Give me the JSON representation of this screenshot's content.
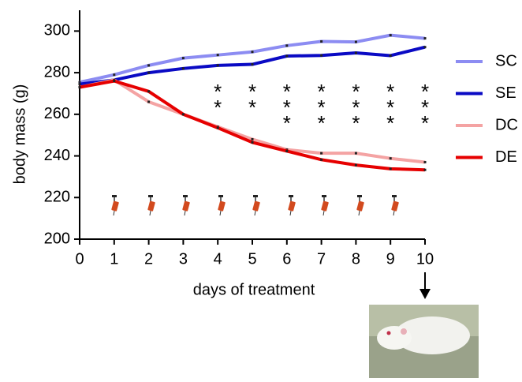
{
  "chart_data": {
    "type": "line",
    "x_label": "days of treatment",
    "y_label": "body mass (g)",
    "x": [
      0,
      1,
      2,
      3,
      4,
      5,
      6,
      7,
      8,
      9,
      10
    ],
    "series": [
      {
        "name": "SC",
        "color": "#8c8cf2",
        "values": [
          275.4,
          279,
          283.5,
          287,
          288.5,
          290,
          293,
          295,
          294.8,
          298,
          296.5
        ]
      },
      {
        "name": "SE",
        "color": "#0a0ac4",
        "values": [
          274.5,
          276.5,
          280,
          282,
          283.5,
          284,
          288,
          288.3,
          289.5,
          288.2,
          292.3
        ]
      },
      {
        "name": "DC",
        "color": "#f4a3a3",
        "values": [
          273,
          276.5,
          266,
          260,
          254,
          248,
          243,
          241.3,
          241.3,
          238.8,
          237
        ]
      },
      {
        "name": "DE",
        "color": "#e60000",
        "values": [
          273,
          276,
          271,
          260,
          253.5,
          246.5,
          242.3,
          238.2,
          235.6,
          233.8,
          233.3
        ]
      }
    ],
    "annotations": [
      {
        "x": 4,
        "stars": [
          "*",
          "*"
        ]
      },
      {
        "x": 5,
        "stars": [
          "*",
          "*"
        ]
      },
      {
        "x": 6,
        "stars": [
          "*",
          "*",
          "*"
        ]
      },
      {
        "x": 7,
        "stars": [
          "*",
          "*",
          "*"
        ]
      },
      {
        "x": 8,
        "stars": [
          "*",
          "*",
          "*"
        ]
      },
      {
        "x": 9,
        "stars": [
          "*",
          "*",
          "*"
        ]
      },
      {
        "x": 10,
        "stars": [
          "*",
          "*",
          "*"
        ]
      }
    ],
    "xlim": [
      0,
      10
    ],
    "xticks": [
      0,
      1,
      2,
      3,
      4,
      5,
      6,
      7,
      8,
      9,
      10
    ],
    "ylim": [
      200,
      310
    ],
    "yticks": [
      200,
      220,
      240,
      260,
      280,
      300
    ],
    "grid": false,
    "legend": "right"
  }
}
